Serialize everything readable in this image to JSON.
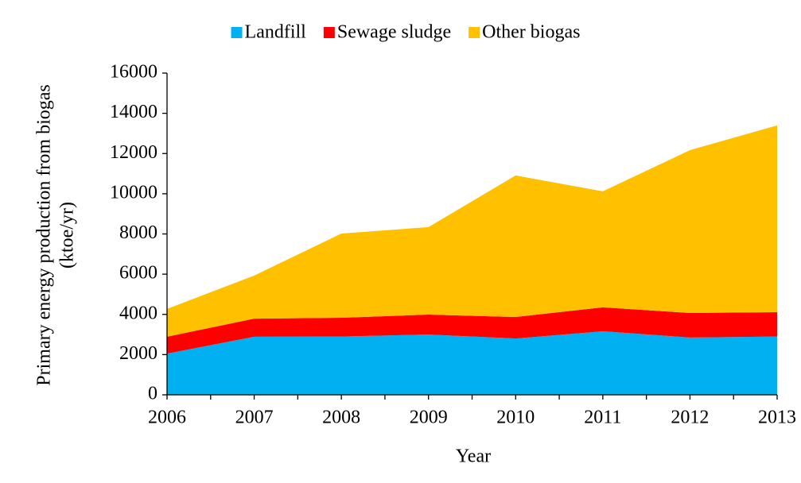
{
  "chart_data": {
    "type": "stacked_area",
    "ylabel": [
      "Primary energy production from biogas",
      "(ktoe/yr)"
    ],
    "xlabel": "Year",
    "x": [
      2006,
      2007,
      2008,
      2009,
      2010,
      2011,
      2012,
      2013
    ],
    "series": [
      {
        "name": "Landfill",
        "color": "#00b0f0",
        "values": [
          2050,
          2890,
          2900,
          3000,
          2800,
          3160,
          2850,
          2900
        ]
      },
      {
        "name": "Sewage sludge",
        "color": "#ff0000",
        "values": [
          840,
          900,
          930,
          990,
          1070,
          1190,
          1220,
          1210
        ]
      },
      {
        "name": "Other biogas",
        "color": "#ffc000",
        "values": [
          1380,
          2140,
          4190,
          4350,
          7040,
          5770,
          8100,
          9290
        ]
      }
    ],
    "xlim": [
      2006,
      2013
    ],
    "xticks": [
      2006,
      2007,
      2008,
      2009,
      2010,
      2011,
      2012,
      2013
    ],
    "ylim": [
      0,
      16000
    ],
    "yticks": [
      0,
      2000,
      4000,
      6000,
      8000,
      10000,
      12000,
      14000,
      16000
    ],
    "legend": "top"
  }
}
